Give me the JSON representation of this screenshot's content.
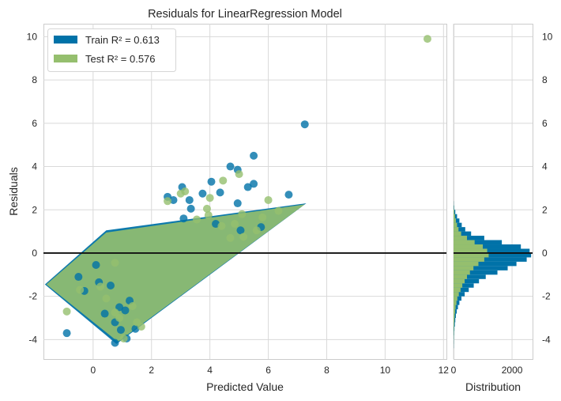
{
  "chart_data": {
    "type": "scatter",
    "title": "Residuals for LinearRegression Model",
    "xlabel": "Predicted Value",
    "ylabel": "Residuals",
    "xlim": [
      -1.7,
      12.1
    ],
    "ylim": [
      -4.9,
      10.6
    ],
    "xticks": [
      0,
      2,
      4,
      6,
      8,
      10,
      12
    ],
    "yticks": [
      -4,
      -2,
      0,
      2,
      4,
      6,
      8,
      10
    ],
    "grid": true,
    "legend_position": "top-left",
    "colors": {
      "train": "#0072a8",
      "test": "#95bf6e",
      "zero_line": "#111111"
    },
    "series": [
      {
        "name": "Train",
        "r2_label": "Train R² = 0.613",
        "points": [
          [
            7.25,
            5.95
          ],
          [
            5.5,
            4.5
          ],
          [
            4.7,
            4.0
          ],
          [
            4.95,
            3.85
          ],
          [
            4.05,
            3.3
          ],
          [
            5.5,
            3.2
          ],
          [
            5.3,
            3.05
          ],
          [
            3.05,
            3.05
          ],
          [
            4.35,
            2.8
          ],
          [
            3.75,
            2.75
          ],
          [
            6.7,
            2.7
          ],
          [
            2.55,
            2.6
          ],
          [
            2.75,
            2.45
          ],
          [
            3.3,
            2.45
          ],
          [
            4.95,
            2.3
          ],
          [
            3.35,
            2.05
          ],
          [
            3.1,
            1.6
          ],
          [
            4.2,
            1.35
          ],
          [
            5.05,
            1.05
          ],
          [
            5.75,
            1.2
          ],
          [
            -0.9,
            -3.7
          ],
          [
            -0.3,
            -1.75
          ],
          [
            -0.5,
            -1.1
          ],
          [
            0.2,
            -1.35
          ],
          [
            0.4,
            -2.8
          ],
          [
            0.75,
            -3.2
          ],
          [
            0.75,
            -4.15
          ],
          [
            0.95,
            -3.55
          ],
          [
            1.1,
            -2.65
          ],
          [
            1.15,
            -3.95
          ],
          [
            1.25,
            -2.2
          ],
          [
            0.9,
            -2.5
          ],
          [
            1.45,
            -3.5
          ],
          [
            0.6,
            -1.5
          ],
          [
            0.1,
            -0.55
          ]
        ],
        "band": {
          "lower_left": [
            -1.65,
            -1.45
          ],
          "upper_left": [
            0.45,
            1.05
          ],
          "upper_right": [
            7.3,
            2.3
          ],
          "lower_right": [
            0.8,
            -4.2
          ]
        }
      },
      {
        "name": "Test",
        "r2_label": "Test R² = 0.576",
        "points": [
          [
            11.45,
            9.9
          ],
          [
            5.0,
            3.65
          ],
          [
            4.45,
            3.35
          ],
          [
            3.15,
            2.85
          ],
          [
            3.0,
            2.75
          ],
          [
            2.55,
            2.4
          ],
          [
            4.0,
            2.55
          ],
          [
            3.9,
            2.05
          ],
          [
            6.0,
            2.45
          ],
          [
            6.35,
            1.95
          ],
          [
            5.1,
            1.8
          ],
          [
            5.8,
            1.65
          ],
          [
            3.55,
            1.55
          ],
          [
            3.95,
            1.75
          ],
          [
            4.85,
            1.35
          ],
          [
            5.6,
            1.05
          ],
          [
            5.15,
            0.75
          ],
          [
            4.4,
            1.25
          ],
          [
            4.7,
            0.7
          ],
          [
            -0.9,
            -2.7
          ],
          [
            -0.45,
            -1.7
          ],
          [
            0.45,
            -2.1
          ],
          [
            0.75,
            -2.75
          ],
          [
            0.9,
            -3.0
          ],
          [
            1.05,
            -3.95
          ],
          [
            1.35,
            -2.45
          ],
          [
            1.5,
            -3.2
          ],
          [
            1.65,
            -3.4
          ],
          [
            0.25,
            -1.55
          ],
          [
            0.75,
            -0.45
          ]
        ],
        "band": {
          "lower_left": [
            -1.6,
            -1.45
          ],
          "upper_left": [
            0.45,
            0.95
          ],
          "upper_right": [
            7.25,
            2.25
          ],
          "lower_right": [
            0.85,
            -4.1
          ]
        }
      }
    ],
    "zero_line": 0,
    "distribution": {
      "xlabel": "Distribution",
      "xticks": [
        0,
        2000
      ],
      "xlim": [
        0,
        2700
      ],
      "bin_centers": [
        -4.3,
        -4.1,
        -3.9,
        -3.7,
        -3.5,
        -3.3,
        -3.1,
        -2.9,
        -2.7,
        -2.5,
        -2.3,
        -2.1,
        -1.9,
        -1.7,
        -1.5,
        -1.3,
        -1.1,
        -0.9,
        -0.7,
        -0.5,
        -0.3,
        -0.1,
        0.1,
        0.3,
        0.5,
        0.7,
        0.9,
        1.1,
        1.3,
        1.5,
        1.7,
        1.9,
        2.1,
        2.3
      ],
      "bin_width": 0.2,
      "train_counts": [
        5,
        8,
        12,
        20,
        30,
        45,
        60,
        80,
        110,
        150,
        200,
        270,
        380,
        520,
        690,
        870,
        1100,
        1500,
        1850,
        2150,
        2500,
        2650,
        2600,
        2300,
        1650,
        1050,
        600,
        400,
        280,
        200,
        120,
        60,
        20,
        5
      ],
      "test_counts": [
        2,
        4,
        6,
        10,
        15,
        20,
        30,
        40,
        55,
        70,
        100,
        130,
        180,
        240,
        300,
        380,
        460,
        560,
        680,
        850,
        1050,
        1200,
        1150,
        1000,
        720,
        460,
        260,
        170,
        120,
        80,
        50,
        25,
        8,
        2
      ]
    }
  }
}
